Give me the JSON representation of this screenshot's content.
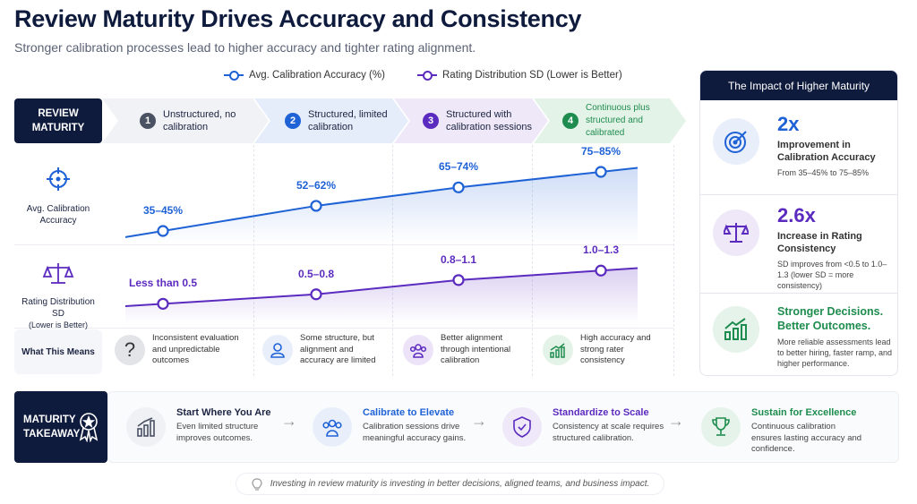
{
  "title": "Review Maturity Drives Accuracy and Consistency",
  "subtitle": "Stronger calibration processes lead to higher accuracy and tighter rating alignment.",
  "colors": {
    "navy": "#0f1b3d",
    "blue": "#1f62d6",
    "purple": "#5b2bbf",
    "green": "#1e8c4e",
    "gray": "#4a5163"
  },
  "header_label": "REVIEW MATURITY",
  "stages": [
    {
      "num": "1",
      "label": "Unstructured, no calibration"
    },
    {
      "num": "2",
      "label": "Structured, limited calibration"
    },
    {
      "num": "3",
      "label": "Structured with calibration sessions"
    },
    {
      "num": "4",
      "label": "Continuous plus structured and calibrated"
    }
  ],
  "row_labels": {
    "accuracy": "Avg. Calibration Accuracy",
    "sd": "Rating Distribution SD",
    "sd_note": "(Lower is Better)",
    "means": "What This Means"
  },
  "chart_data": {
    "type": "line",
    "categories": [
      "Unstructured, no calibration",
      "Structured, limited calibration",
      "Structured with calibration sessions",
      "Continuous plus structured and calibrated"
    ],
    "legend_position": "top",
    "grid": false,
    "series": [
      {
        "name": "Avg. Calibration Accuracy (%)",
        "color": "#1f62d6",
        "ranges": [
          [
            35,
            45
          ],
          [
            52,
            62
          ],
          [
            65,
            74
          ],
          [
            75,
            85
          ]
        ],
        "labels": [
          "35–45%",
          "52–62%",
          "65–74%",
          "75–85%"
        ]
      },
      {
        "name": "Rating Distribution SD (Lower is Better)",
        "color": "#5b2bbf",
        "ranges": [
          [
            null,
            0.5
          ],
          [
            0.5,
            0.8
          ],
          [
            0.8,
            1.1
          ],
          [
            1.0,
            1.3
          ]
        ],
        "labels": [
          "Less than 0.5",
          "0.5–0.8",
          "0.8–1.1",
          "1.0–1.3"
        ]
      }
    ]
  },
  "means": [
    {
      "icon": "question-icon",
      "text": "Inconsistent evaluation and unpredictable outcomes"
    },
    {
      "icon": "person-icon",
      "text": "Some structure, but alignment and accuracy are limited"
    },
    {
      "icon": "group-icon",
      "text": "Better alignment through intentional calibration"
    },
    {
      "icon": "growth-chart-icon",
      "text": "High accuracy and strong rater consistency"
    }
  ],
  "panel": {
    "title": "The Impact of Higher Maturity",
    "items": [
      {
        "icon": "target-icon",
        "big": "2x",
        "head": "Improvement in Calibration Accuracy",
        "desc": "From 35–45% to 75–85%"
      },
      {
        "icon": "scale-icon",
        "big": "2.6x",
        "head": "Increase in Rating Consistency",
        "desc": "SD improves from <0.5 to 1.0–1.3 (lower SD = more consistency)"
      },
      {
        "icon": "growth-chart-icon",
        "big": "Stronger Decisions. Better Outcomes.",
        "desc": "More reliable assessments lead to better hiring, faster ramp, and higher performance."
      }
    ]
  },
  "takeaway": {
    "label": "MATURITY TAKEAWAY",
    "items": [
      {
        "icon": "bar-chart-icon",
        "title": "Start Where You Are",
        "desc": "Even limited structure improves outcomes."
      },
      {
        "icon": "group-icon",
        "title": "Calibrate to Elevate",
        "desc": "Calibration sessions drive meaningful accuracy gains."
      },
      {
        "icon": "shield-check-icon",
        "title": "Standardize to Scale",
        "desc": "Consistency at scale requires structured calibration."
      },
      {
        "icon": "trophy-icon",
        "title": "Sustain for Excellence",
        "desc": "Continuous calibration ensures lasting accuracy and confidence."
      }
    ]
  },
  "footer": "Investing in review maturity is investing in better decisions, aligned teams, and business impact."
}
